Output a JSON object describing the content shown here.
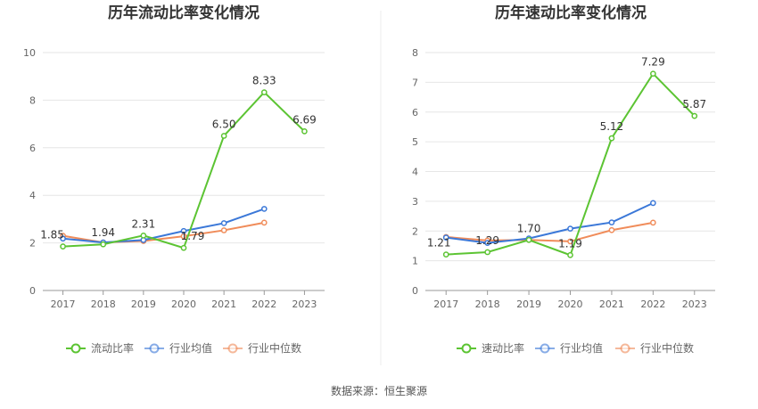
{
  "source_label": "数据来源：恒生聚源",
  "colors": {
    "company": "#5cc433",
    "industry_avg": "#3b78d8",
    "industry_median": "#f08c5a"
  },
  "chart_data": [
    {
      "type": "line",
      "title": "历年流动比率变化情况",
      "categories": [
        "2017",
        "2018",
        "2019",
        "2020",
        "2021",
        "2022",
        "2023"
      ],
      "ylim": [
        0,
        10
      ],
      "yticks": [
        "0",
        "2",
        "4",
        "6",
        "8",
        "10"
      ],
      "grid": true,
      "legend_position": "bottom",
      "series": [
        {
          "name": "流动比率",
          "values": [
            1.85,
            1.94,
            2.31,
            1.79,
            6.5,
            8.33,
            6.69
          ],
          "labels": [
            "1.85",
            "1.94",
            "2.31",
            "1.79",
            "6.50",
            "8.33",
            "6.69"
          ]
        },
        {
          "name": "行业均值",
          "values": [
            2.18,
            2.02,
            2.12,
            2.5,
            2.83,
            3.43,
            null
          ]
        },
        {
          "name": "行业中位数",
          "values": [
            2.3,
            2.02,
            2.08,
            2.28,
            2.53,
            2.85,
            null
          ]
        }
      ]
    },
    {
      "type": "line",
      "title": "历年速动比率变化情况",
      "categories": [
        "2017",
        "2018",
        "2019",
        "2020",
        "2021",
        "2022",
        "2023"
      ],
      "ylim": [
        0,
        8
      ],
      "yticks": [
        "0",
        "1",
        "2",
        "3",
        "4",
        "5",
        "6",
        "7",
        "8"
      ],
      "grid": true,
      "legend_position": "bottom",
      "series": [
        {
          "name": "速动比率",
          "values": [
            1.21,
            1.29,
            1.7,
            1.19,
            5.12,
            7.29,
            5.87
          ],
          "labels": [
            "1.21",
            "1.29",
            "1.70",
            "1.19",
            "5.12",
            "7.29",
            "5.87"
          ]
        },
        {
          "name": "行业均值",
          "values": [
            1.78,
            1.6,
            1.75,
            2.08,
            2.29,
            2.94,
            null
          ]
        },
        {
          "name": "行业中位数",
          "values": [
            1.8,
            1.68,
            1.7,
            1.65,
            2.03,
            2.28,
            null
          ]
        }
      ]
    }
  ]
}
